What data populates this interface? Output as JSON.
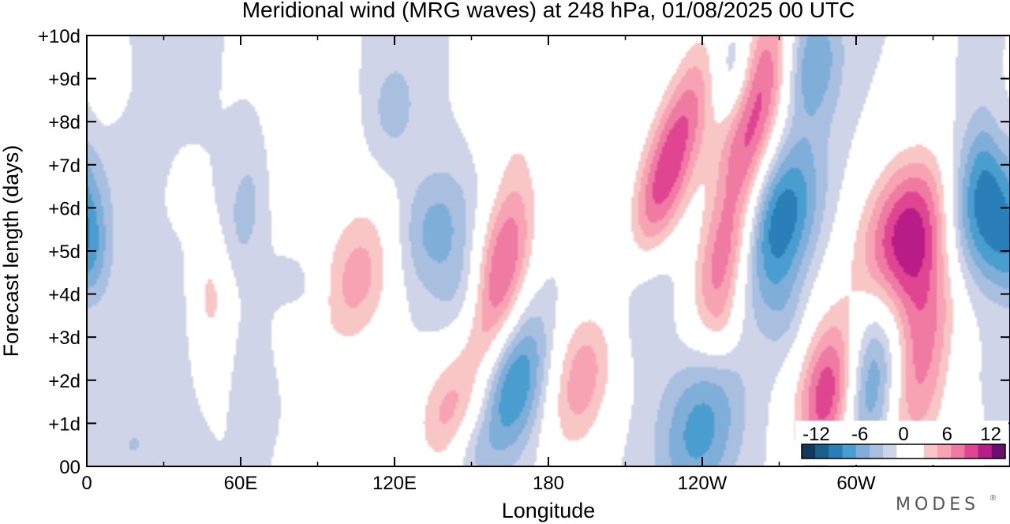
{
  "chart_data": {
    "type": "contour",
    "title": "Meridional wind (MRG waves) at  248 hPa,  01/08/2025  00 UTC",
    "xlabel": "Longitude",
    "ylabel": "Forecast length (days)",
    "x_ticks": [
      {
        "lon": 0,
        "label": "0"
      },
      {
        "lon": 60,
        "label": "60E"
      },
      {
        "lon": 120,
        "label": "120E"
      },
      {
        "lon": 180,
        "label": "180"
      },
      {
        "lon": 240,
        "label": "120W"
      },
      {
        "lon": 300,
        "label": "60W"
      }
    ],
    "y_ticks": [
      {
        "day": 0,
        "label": "00"
      },
      {
        "day": 1,
        "label": "+1d"
      },
      {
        "day": 2,
        "label": "+2d"
      },
      {
        "day": 3,
        "label": "+3d"
      },
      {
        "day": 4,
        "label": "+4d"
      },
      {
        "day": 5,
        "label": "+5d"
      },
      {
        "day": 6,
        "label": "+6d"
      },
      {
        "day": 7,
        "label": "+7d"
      },
      {
        "day": 8,
        "label": "+8d"
      },
      {
        "day": 9,
        "label": "+9d"
      },
      {
        "day": 10,
        "label": "+10d"
      }
    ],
    "xlim": [
      0,
      360
    ],
    "ylim": [
      0,
      10
    ],
    "minor_x_step": 30,
    "colorbar": {
      "min": -14,
      "max": 14,
      "step": 2,
      "tick_labels": [
        {
          "v": -12,
          "label": "-12"
        },
        {
          "v": -6,
          "label": "-6"
        },
        {
          "v": 0,
          "label": "0"
        },
        {
          "v": 6,
          "label": "6"
        },
        {
          "v": 12,
          "label": "12"
        }
      ],
      "colors": [
        "#0f3a5c",
        "#1b5f8c",
        "#2a7fb8",
        "#4a9dcf",
        "#7faed8",
        "#a8bfe0",
        "#cfd4e8",
        "#ffffff",
        "#ffffff",
        "#f9c6c6",
        "#f7a3b4",
        "#ef7aa2",
        "#e04592",
        "#b81c86",
        "#6b0f6e"
      ]
    },
    "features": [
      {
        "lon": 349,
        "day": 6.2,
        "val": -11,
        "w": 11,
        "h": 1.4,
        "tilt": 3
      },
      {
        "lon": 306,
        "day": 2.1,
        "val": -11,
        "w": 9,
        "h": 1.5,
        "tilt": 2
      },
      {
        "lon": 270,
        "day": 5.7,
        "val": -10,
        "w": 10,
        "h": 1.3,
        "tilt": 3
      },
      {
        "lon": 166,
        "day": 1.9,
        "val": -9,
        "w": 9,
        "h": 1.2,
        "tilt": 3
      },
      {
        "lon": 239,
        "day": 0.9,
        "val": -7,
        "w": 11,
        "h": 1.3,
        "tilt": 2
      },
      {
        "lon": 254,
        "day": 9.0,
        "val": -7,
        "w": 7,
        "h": 1.0,
        "tilt": 0
      },
      {
        "lon": 283,
        "day": 9.4,
        "val": -6,
        "w": 8,
        "h": 1.0,
        "tilt": 1
      },
      {
        "lon": 214,
        "day": 4.3,
        "val": -6,
        "w": 9,
        "h": 1.1,
        "tilt": 2
      },
      {
        "lon": 135,
        "day": 5.5,
        "val": -5,
        "w": 11,
        "h": 1.0,
        "tilt": 2
      },
      {
        "lon": 148,
        "day": 4.0,
        "val": -3,
        "w": 8,
        "h": 0.8,
        "tilt": 1
      },
      {
        "lon": 62,
        "day": 6.0,
        "val": -3,
        "w": 6,
        "h": 1.2,
        "tilt": 2
      },
      {
        "lon": 30,
        "day": 3.6,
        "val": -2,
        "w": 10,
        "h": 1.2,
        "tilt": 0
      },
      {
        "lon": 66,
        "day": 2.4,
        "val": -2,
        "w": 5,
        "h": 0.8,
        "tilt": 0
      },
      {
        "lon": 3,
        "day": 5.0,
        "val": -3,
        "w": 5,
        "h": 0.9,
        "tilt": 0
      },
      {
        "lon": 119,
        "day": 8.3,
        "val": -3,
        "w": 8,
        "h": 1.0,
        "tilt": 1
      },
      {
        "lon": 22,
        "day": 8.6,
        "val": -2,
        "w": 10,
        "h": 1.2,
        "tilt": 0
      },
      {
        "lon": 357,
        "day": 5.0,
        "val": -3,
        "w": 6,
        "h": 0.8,
        "tilt": 0
      },
      {
        "lon": 83,
        "day": 4.0,
        "val": -2,
        "w": 7,
        "h": 0.6,
        "tilt": 0
      },
      {
        "lon": 272,
        "day": 3.5,
        "val": -2,
        "w": 6,
        "h": 0.8,
        "tilt": 0
      },
      {
        "lon": 337,
        "day": 2.5,
        "val": -2,
        "w": 9,
        "h": 1.0,
        "tilt": 1
      },
      {
        "lon": 18,
        "day": 0.5,
        "val": -2,
        "w": 10,
        "h": 0.7,
        "tilt": 1
      },
      {
        "lon": 150,
        "day": 0.4,
        "val": -2,
        "w": 6,
        "h": 0.5,
        "tilt": 0
      },
      {
        "lon": 260,
        "day": 8.4,
        "val": 14,
        "w": 8,
        "h": 1.6,
        "tilt": 3
      },
      {
        "lon": 320,
        "day": 5.3,
        "val": 14,
        "w": 13,
        "h": 1.4,
        "tilt": 3
      },
      {
        "lon": 290,
        "day": 1.7,
        "val": 13,
        "w": 9,
        "h": 1.3,
        "tilt": 2
      },
      {
        "lon": 325,
        "day": 2.4,
        "val": 10,
        "w": 11,
        "h": 1.7,
        "tilt": 3
      },
      {
        "lon": 226,
        "day": 6.8,
        "val": 12,
        "w": 8,
        "h": 2.2,
        "tilt": 5
      },
      {
        "lon": 248,
        "day": 4.7,
        "val": 9,
        "w": 8,
        "h": 1.3,
        "tilt": 3
      },
      {
        "lon": 161,
        "day": 4.4,
        "val": 11,
        "w": 8,
        "h": 1.7,
        "tilt": 3
      },
      {
        "lon": 192,
        "day": 2.0,
        "val": 7,
        "w": 9,
        "h": 1.3,
        "tilt": 2
      },
      {
        "lon": 106,
        "day": 4.4,
        "val": 7,
        "w": 11,
        "h": 1.3,
        "tilt": 3
      },
      {
        "lon": 48,
        "day": 3.9,
        "val": 5,
        "w": 6,
        "h": 1.0,
        "tilt": 0
      },
      {
        "lon": 140,
        "day": 1.2,
        "val": 6,
        "w": 9,
        "h": 1.0,
        "tilt": 2
      },
      {
        "lon": 165,
        "day": 8.6,
        "val": 3,
        "w": 9,
        "h": 1.2,
        "tilt": 1
      },
      {
        "lon": 202,
        "day": 8.8,
        "val": 3,
        "w": 10,
        "h": 1.2,
        "tilt": 1
      },
      {
        "lon": 88,
        "day": 7.4,
        "val": 3,
        "w": 13,
        "h": 1.3,
        "tilt": 1
      },
      {
        "lon": 13,
        "day": 9.0,
        "val": 3,
        "w": 5,
        "h": 0.7,
        "tilt": 0
      },
      {
        "lon": 356,
        "day": 7.6,
        "val": 2,
        "w": 4,
        "h": 0.9,
        "tilt": 0
      },
      {
        "lon": 4,
        "day": 7.8,
        "val": 3,
        "w": 6,
        "h": 1.1,
        "tilt": 0
      },
      {
        "lon": 82,
        "day": 3.0,
        "val": 3,
        "w": 6,
        "h": 0.6,
        "tilt": 0
      },
      {
        "lon": 100,
        "day": 0.8,
        "val": 2,
        "w": 9,
        "h": 0.7,
        "tilt": 1
      },
      {
        "lon": 248,
        "day": 3.2,
        "val": 2,
        "w": 5,
        "h": 0.6,
        "tilt": 0
      },
      {
        "lon": 38,
        "day": 6.3,
        "val": 2,
        "w": 4,
        "h": 0.6,
        "tilt": 0
      }
    ]
  },
  "branding": {
    "logo": "MODES",
    "trademark": "®"
  }
}
